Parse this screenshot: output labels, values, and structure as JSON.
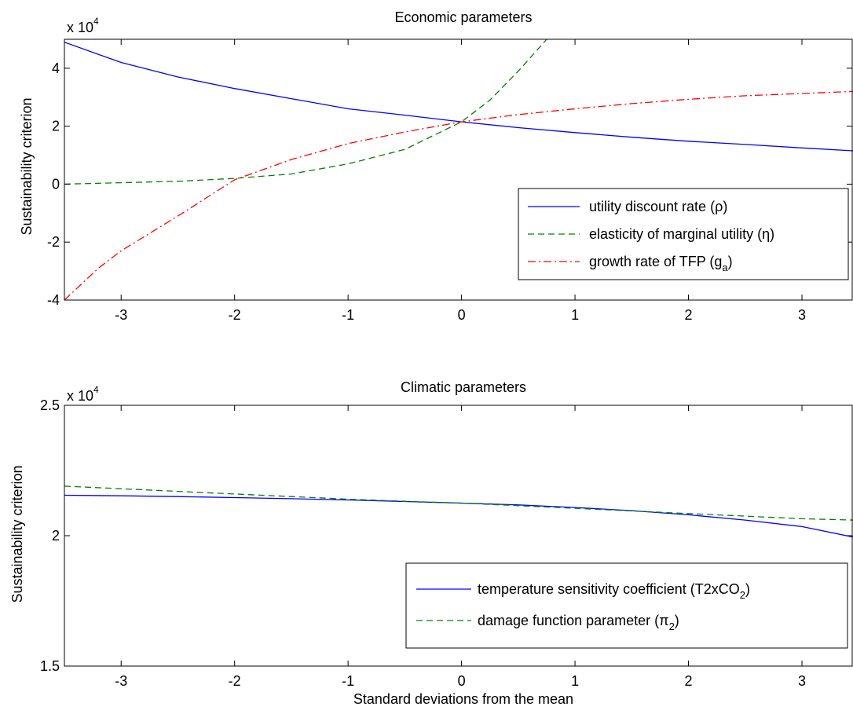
{
  "figure": {
    "xlabel": "Standard deviations from the mean"
  },
  "chart_data": [
    {
      "type": "line",
      "title": "Economic parameters",
      "xlabel": "",
      "ylabel": "Sustainability criterion",
      "scale_note": "x 10",
      "scale_exp": "4",
      "xlim": [
        -3.5,
        3.45
      ],
      "ylim": [
        -4,
        5
      ],
      "xticks": [
        "-3",
        "-2",
        "-1",
        "0",
        "1",
        "2",
        "3"
      ],
      "yticks": [
        "-4",
        "-2",
        "0",
        "2",
        "4"
      ],
      "legend_position": "lower-right",
      "series": [
        {
          "name": "utility discount rate (ρ)",
          "color": "#0000ff",
          "dash": "solid",
          "x": [
            -3.5,
            -3,
            -2.5,
            -2,
            -1.5,
            -1,
            -0.5,
            0,
            0.5,
            1,
            1.5,
            2,
            2.5,
            3,
            3.45
          ],
          "y": [
            4.9,
            4.2,
            3.7,
            3.3,
            2.95,
            2.6,
            2.38,
            2.15,
            1.95,
            1.78,
            1.62,
            1.48,
            1.37,
            1.25,
            1.15
          ]
        },
        {
          "name": "elasticity of marginal utility (η)",
          "color": "#008000",
          "dash": "dashed",
          "x": [
            -3.5,
            -3,
            -2.5,
            -2,
            -1.5,
            -1,
            -0.5,
            0,
            0.25,
            0.5,
            0.75
          ],
          "y": [
            0.0,
            0.05,
            0.1,
            0.2,
            0.35,
            0.7,
            1.2,
            2.15,
            2.9,
            3.9,
            5.0
          ]
        },
        {
          "name": "growth rate of TFP (g_a)",
          "color": "#ff0000",
          "dash": "dashdot",
          "x": [
            -3.5,
            -3.2,
            -3,
            -2.5,
            -2,
            -1.5,
            -1,
            -0.5,
            0,
            0.5,
            1,
            1.5,
            2,
            2.5,
            3,
            3.45
          ],
          "y": [
            -4.0,
            -2.9,
            -2.3,
            -1.1,
            0.15,
            0.85,
            1.4,
            1.8,
            2.15,
            2.4,
            2.6,
            2.78,
            2.93,
            3.05,
            3.13,
            3.2
          ]
        }
      ],
      "legend_labels": [
        {
          "text": "utility discount rate (",
          "sym": "ρ",
          "sub": "",
          "close": ")"
        },
        {
          "text": "elasticity of marginal utility (",
          "sym": "η",
          "sub": "",
          "close": ")"
        },
        {
          "text": "growth rate of TFP (g",
          "sym": "",
          "sub": "a",
          "close": ")"
        }
      ]
    },
    {
      "type": "line",
      "title": "Climatic parameters",
      "xlabel": "Standard deviations from the mean",
      "ylabel": "Sustainability criterion",
      "scale_note": "x 10",
      "scale_exp": "4",
      "xlim": [
        -3.5,
        3.45
      ],
      "ylim": [
        1.5,
        2.5
      ],
      "xticks": [
        "-3",
        "-2",
        "-1",
        "0",
        "1",
        "2",
        "3"
      ],
      "yticks": [
        "1.5",
        "2",
        "2.5"
      ],
      "legend_position": "lower-right",
      "series": [
        {
          "name": "temperature sensitivity coefficient (T2xCO2)",
          "color": "#0000ff",
          "dash": "solid",
          "x": [
            -3.5,
            -3,
            -2.5,
            -2,
            -1.5,
            -1,
            -0.5,
            0,
            0.5,
            1,
            1.5,
            2,
            2.5,
            3,
            3.45
          ],
          "y": [
            2.155,
            2.153,
            2.15,
            2.146,
            2.142,
            2.137,
            2.131,
            2.125,
            2.118,
            2.108,
            2.096,
            2.08,
            2.06,
            2.035,
            1.995
          ]
        },
        {
          "name": "damage function parameter (π2)",
          "color": "#008000",
          "dash": "dashed",
          "x": [
            -3.5,
            -3,
            -2.5,
            -2,
            -1.5,
            -1,
            -0.5,
            0,
            0.5,
            1,
            1.5,
            2,
            2.5,
            3,
            3.45
          ],
          "y": [
            2.19,
            2.18,
            2.17,
            2.16,
            2.15,
            2.14,
            2.132,
            2.125,
            2.115,
            2.105,
            2.095,
            2.085,
            2.075,
            2.065,
            2.06
          ]
        }
      ],
      "legend_labels": [
        {
          "text": "temperature sensitivity coefficient (T2xCO",
          "sym": "",
          "sub": "2",
          "close": ")"
        },
        {
          "text": "damage function parameter (",
          "sym": "π",
          "sub": "2",
          "close": ")"
        }
      ]
    }
  ]
}
